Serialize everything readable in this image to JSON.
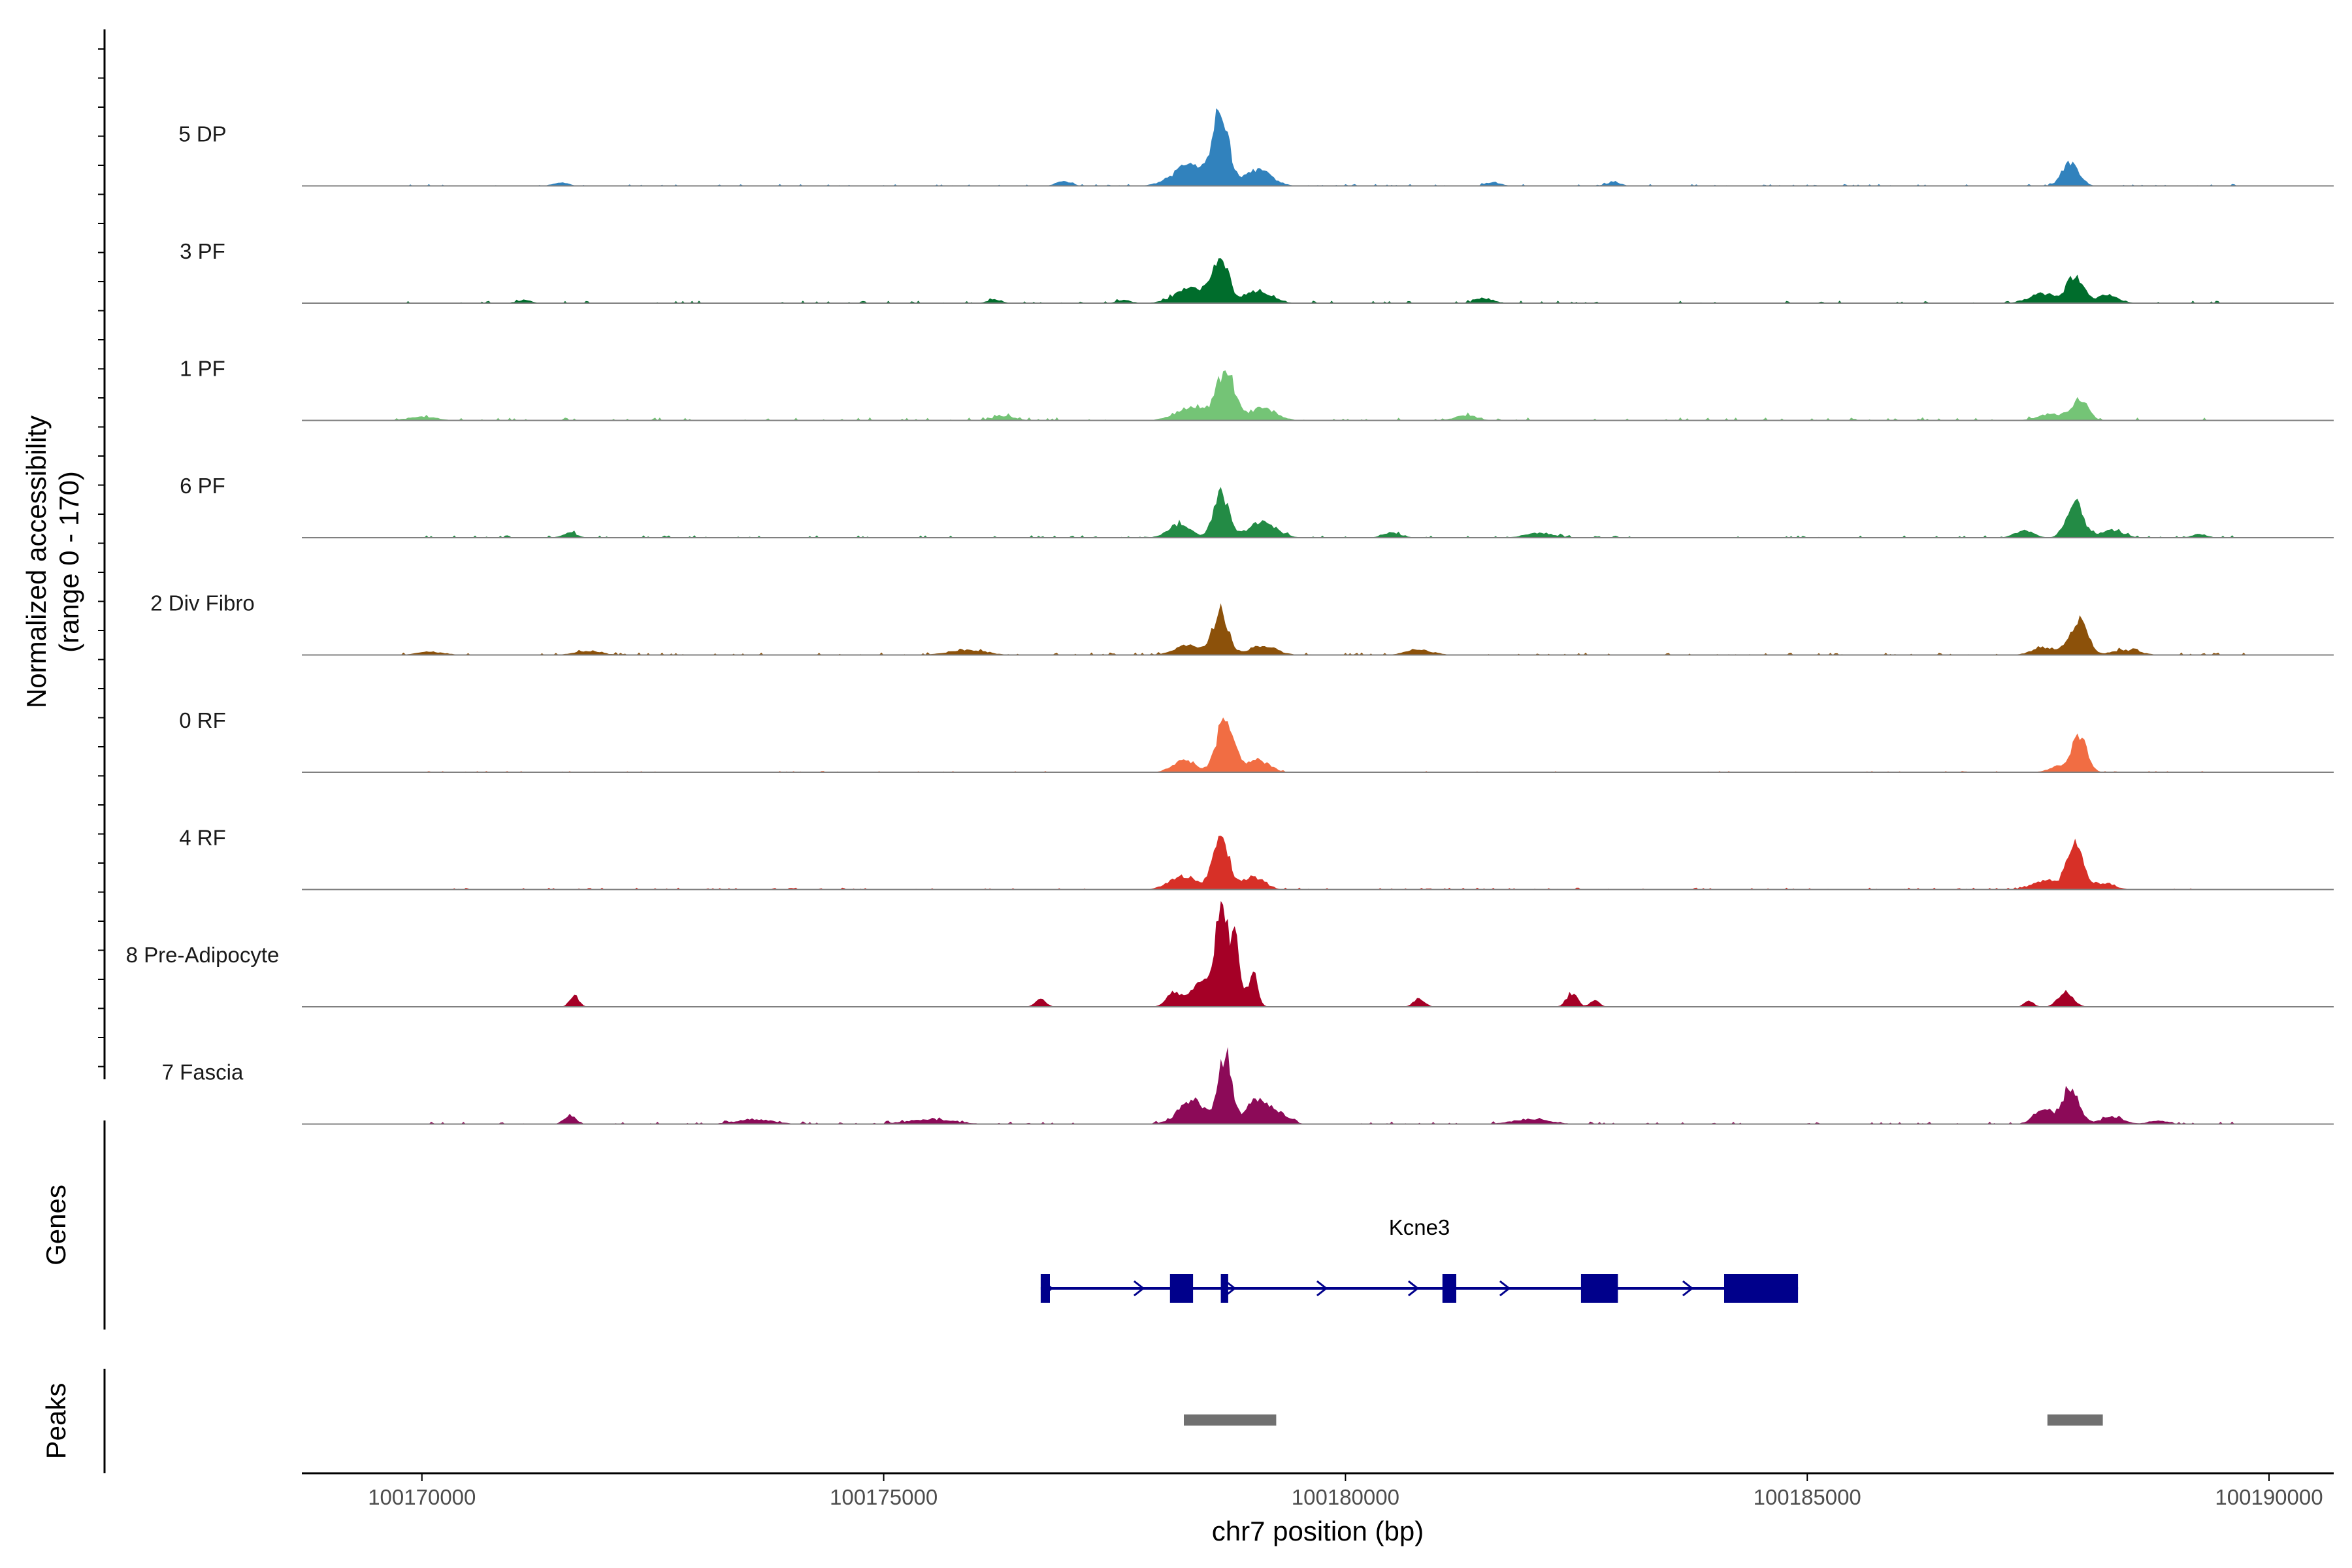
{
  "chart_data": {
    "type": "area",
    "title": "",
    "xlabel": "chr7 position (bp)",
    "ylabel_line1": "Normalized accessibility",
    "ylabel_line2": "(range 0 - 170)",
    "xlim": [
      100168700,
      100190700
    ],
    "ylim": [
      0,
      170
    ],
    "x_ticks": [
      100170000,
      100175000,
      100180000,
      100185000,
      100190000
    ],
    "x_tick_labels": [
      "100170000",
      "100175000",
      "100180000",
      "100185000",
      "100190000"
    ],
    "signal_range": [
      100169700,
      100189800
    ],
    "tracks": [
      {
        "name": "5 DP",
        "color": "#3182bd",
        "peaks": [
          [
            100178650,
            115,
            80,
            60
          ],
          [
            100178350,
            35,
            200,
            0
          ],
          [
            100179050,
            25,
            150,
            0
          ],
          [
            100187850,
            38,
            90,
            0
          ],
          [
            100176950,
            8,
            80,
            0
          ],
          [
            100171500,
            6,
            80,
            0
          ],
          [
            100181600,
            6,
            80,
            0
          ],
          [
            100182900,
            6,
            80,
            0
          ]
        ],
        "noise": 3
      },
      {
        "name": "3 PF",
        "color": "#006d2c",
        "peaks": [
          [
            100178650,
            75,
            80,
            50
          ],
          [
            100178350,
            25,
            180,
            0
          ],
          [
            100179050,
            20,
            150,
            0
          ],
          [
            100187900,
            42,
            90,
            40
          ],
          [
            100187550,
            15,
            150,
            0
          ],
          [
            100188250,
            12,
            120,
            0
          ],
          [
            100176200,
            6,
            80,
            0
          ],
          [
            100181500,
            8,
            100,
            0
          ],
          [
            100171100,
            5,
            80,
            0
          ],
          [
            100177600,
            5,
            80,
            0
          ]
        ],
        "noise": 4
      },
      {
        "name": "1 PF",
        "color": "#74c476",
        "peaks": [
          [
            100178700,
            80,
            90,
            40
          ],
          [
            100178350,
            20,
            180,
            0
          ],
          [
            100179100,
            20,
            150,
            0
          ],
          [
            100187950,
            32,
            90,
            0
          ],
          [
            100187650,
            10,
            150,
            0
          ],
          [
            100170000,
            6,
            150,
            0
          ],
          [
            100176300,
            7,
            120,
            0
          ],
          [
            100181300,
            8,
            120,
            0
          ]
        ],
        "noise": 5
      },
      {
        "name": "6 PF",
        "color": "#238b45",
        "peaks": [
          [
            100178650,
            75,
            80,
            40
          ],
          [
            100178200,
            22,
            120,
            0
          ],
          [
            100179100,
            25,
            150,
            0
          ],
          [
            100187900,
            55,
            90,
            30
          ],
          [
            100187350,
            12,
            100,
            0
          ],
          [
            100188300,
            12,
            120,
            0
          ],
          [
            100171600,
            8,
            80,
            0
          ],
          [
            100180500,
            8,
            100,
            0
          ],
          [
            100182100,
            8,
            150,
            0
          ],
          [
            100189250,
            6,
            80,
            0
          ]
        ],
        "noise": 4
      },
      {
        "name": "2 Div Fibro",
        "color": "#8c510a",
        "peaks": [
          [
            100178650,
            70,
            80,
            0
          ],
          [
            100178300,
            15,
            150,
            0
          ],
          [
            100179100,
            15,
            150,
            0
          ],
          [
            100187950,
            58,
            90,
            0
          ],
          [
            100187600,
            12,
            150,
            0
          ],
          [
            100188450,
            8,
            150,
            0
          ],
          [
            100175900,
            8,
            200,
            0
          ],
          [
            100180800,
            8,
            150,
            0
          ],
          [
            100171800,
            6,
            150,
            0
          ],
          [
            100170100,
            5,
            150,
            0
          ]
        ],
        "noise": 4
      },
      {
        "name": "0 RF",
        "color": "#f16d43",
        "peaks": [
          [
            100178700,
            90,
            90,
            0
          ],
          [
            100178250,
            20,
            120,
            0
          ],
          [
            100179050,
            20,
            120,
            0
          ],
          [
            100187950,
            55,
            80,
            0
          ],
          [
            100187750,
            10,
            120,
            0
          ]
        ],
        "noise": 2
      },
      {
        "name": "4 RF",
        "color": "#d73027",
        "peaks": [
          [
            100178650,
            95,
            80,
            0
          ],
          [
            100178250,
            22,
            150,
            0
          ],
          [
            100179000,
            20,
            120,
            0
          ],
          [
            100187900,
            75,
            80,
            0
          ],
          [
            100187600,
            15,
            150,
            0
          ],
          [
            100188200,
            10,
            120,
            0
          ]
        ],
        "noise": 3
      },
      {
        "name": "8 Pre-Adipocyte",
        "color": "#a50026",
        "peaks": [
          [
            100178650,
            170,
            60,
            0
          ],
          [
            100178800,
            110,
            55,
            0
          ],
          [
            100178450,
            45,
            100,
            0
          ],
          [
            100178150,
            25,
            80,
            0
          ],
          [
            100179000,
            60,
            50,
            0
          ],
          [
            100176700,
            12,
            60,
            0
          ],
          [
            100171650,
            18,
            50,
            0
          ],
          [
            100180800,
            14,
            60,
            0
          ],
          [
            100182450,
            22,
            60,
            0
          ],
          [
            100182700,
            12,
            50,
            0
          ],
          [
            100187800,
            25,
            80,
            0
          ],
          [
            100187400,
            10,
            50,
            0
          ]
        ],
        "noise": 0
      },
      {
        "name": "7 Fascia",
        "color": "#8c0a58",
        "peaks": [
          [
            100178700,
            110,
            70,
            0
          ],
          [
            100178350,
            38,
            150,
            0
          ],
          [
            100179050,
            40,
            120,
            0
          ],
          [
            100179300,
            15,
            100,
            0
          ],
          [
            100187850,
            60,
            90,
            0
          ],
          [
            100187550,
            25,
            100,
            0
          ],
          [
            100188300,
            12,
            120,
            0
          ],
          [
            100171600,
            14,
            60,
            0
          ],
          [
            100173600,
            8,
            200,
            0
          ],
          [
            100175500,
            8,
            250,
            0
          ],
          [
            100182000,
            8,
            200,
            0
          ],
          [
            100188800,
            6,
            100,
            0
          ]
        ],
        "noise": 4
      }
    ],
    "genes": [
      {
        "name": "Kcne3",
        "strand": "+",
        "start": 100176700,
        "end": 100184900,
        "exons": [
          [
            100176700,
            100176800
          ],
          [
            100178100,
            100178350
          ],
          [
            100178650,
            100178730
          ],
          [
            100181050,
            100181200
          ],
          [
            100182550,
            100182950
          ],
          [
            100184100,
            100184900
          ]
        ]
      }
    ],
    "peak_regions": [
      [
        100178250,
        100179250
      ],
      [
        100187600,
        100188200
      ]
    ],
    "panels": {
      "genes": "Genes",
      "peaks": "Peaks"
    }
  },
  "colors": {
    "gene": "#00008b",
    "peak": "#707070",
    "baseline": "#808080",
    "axis": "#000000"
  }
}
